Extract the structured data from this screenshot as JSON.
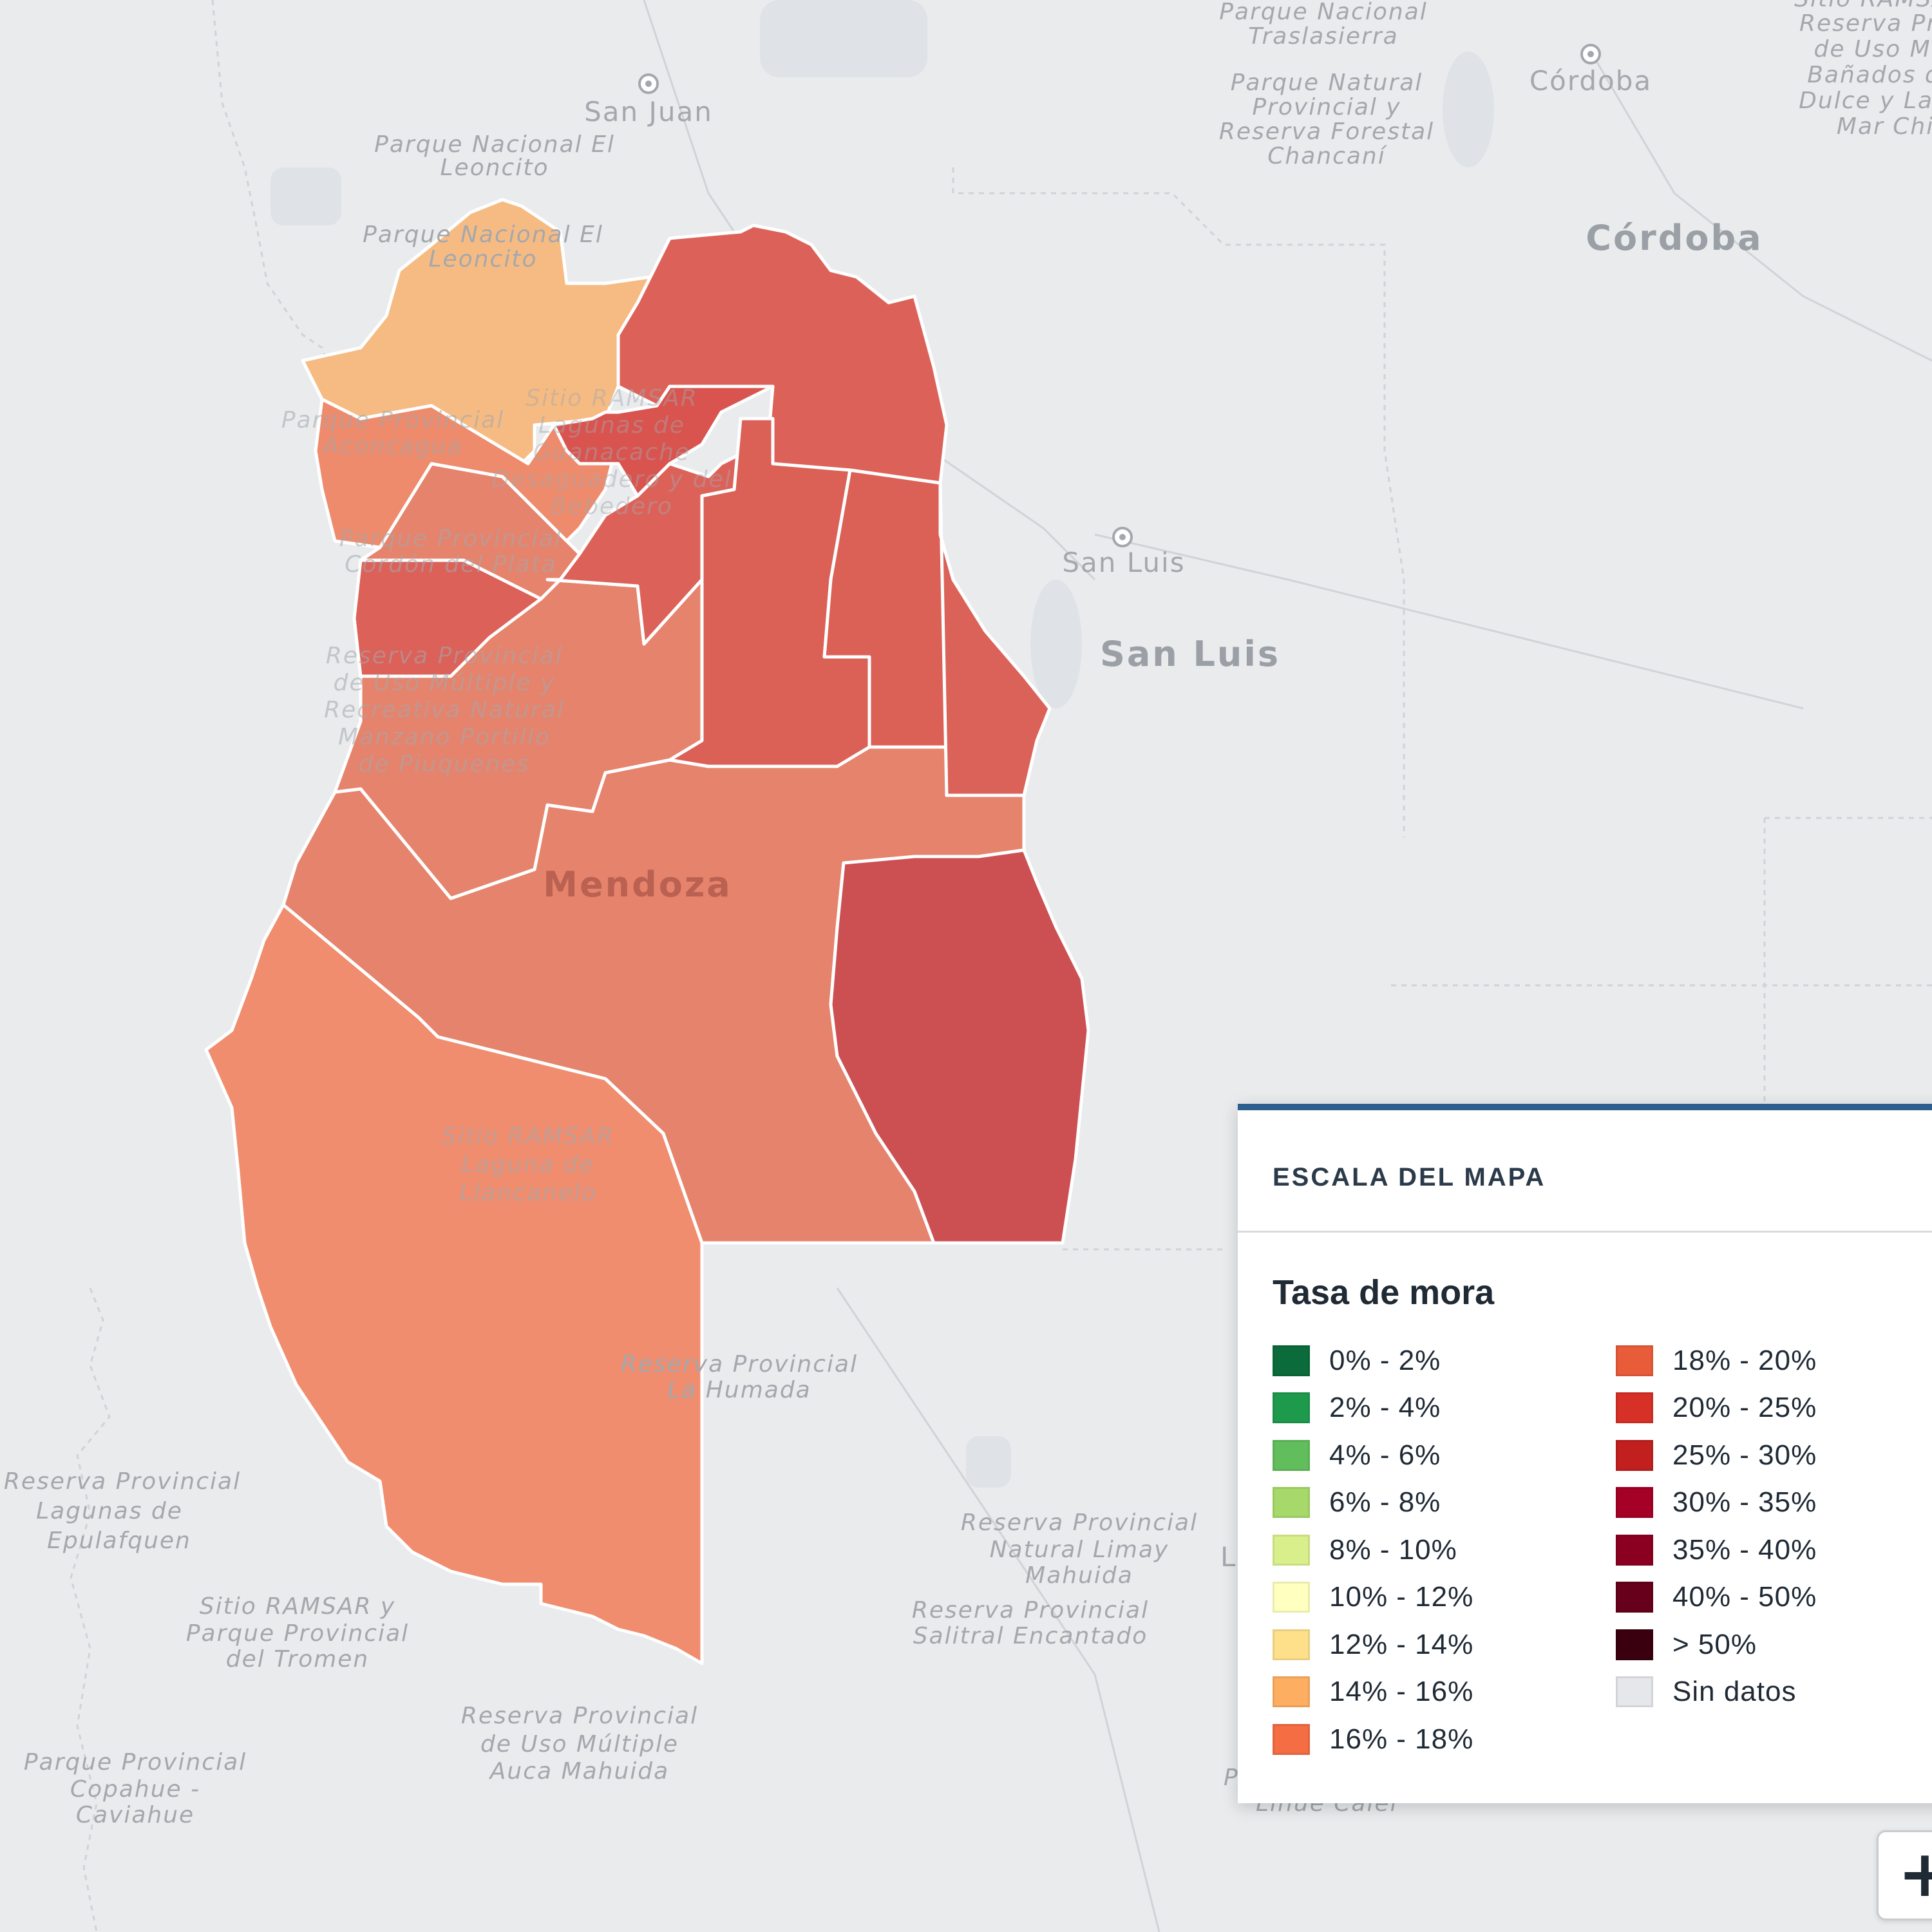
{
  "map": {
    "basemap_labels": {
      "parque_traslasierra_1": "Parque Nacional",
      "parque_traslasierra_2": "Traslasierra",
      "san_juan": "San Juan",
      "cordoba_city": "Córdoba",
      "cordoba_province": "Córdoba",
      "san_luis_city": "San Luis",
      "san_luis_province": "San Luis",
      "leoncito_1_a": "Parque Nacional El",
      "leoncito_1_b": "Leoncito",
      "leoncito_2_a": "Parque Nacional El",
      "leoncito_2_b": "Leoncito",
      "chancani_1": "Parque Natural",
      "chancani_2": "Provincial y",
      "chancani_3": "Reserva Forestal",
      "chancani_4": "Chancaní",
      "ramsar_ne_1": "Sitio RAMSAR",
      "ramsar_ne_2": "Reserva Prov.",
      "ramsar_ne_3": "de Uso Mú",
      "ramsar_ne_4": "Bañados d",
      "ramsar_ne_5": "Dulce y Lag",
      "ramsar_ne_6": "Mar Chiq",
      "mendoza": "Mendoza",
      "llancanelo_1": "Sitio RAMSAR",
      "llancanelo_2": "Laguna de",
      "llancanelo_3": "Llancanelo",
      "humada_1": "Reserva Provincial",
      "humada_2": "La Humada",
      "epulafquen_1": "Reserva Provincial",
      "epulafquen_2": "Lagunas de",
      "epulafquen_3": "Epulafquen",
      "tromen_1": "Sitio RAMSAR y",
      "tromen_2": "Parque Provincial",
      "tromen_3": "del Tromen",
      "limay_1": "Reserva Provincial",
      "limay_2": "Natural Limay",
      "limay_3": "Mahuida",
      "salitral_1": "Reserva Provincial",
      "salitral_2": "Salitral Encantado",
      "auca_1": "Reserva Provincial",
      "auca_2": "de Uso Múltiple",
      "auca_3": "Auca Mahuida",
      "copahue_1": "Parque Provincial",
      "copahue_2": "Copahue -",
      "copahue_3": "Caviahue",
      "lihue_1": "Parq",
      "lihue_2": "Lihue Calel",
      "manzano_1": "Reserva Provincial",
      "manzano_2": "de Uso Múltiple y",
      "manzano_3": "Recreativa Natural",
      "manzano_4": "Manzano Portillo",
      "manzano_5": "de Piuquenes",
      "aconcagua_1": "Parque Provincial",
      "aconcagua_2": "Aconcagua",
      "cordon_1": "Parque Provincial",
      "cordon_2": "Cordón del Plata",
      "ramsar_mid_1": "Sitio RAMSAR",
      "ramsar_mid_2": "Lagunas de",
      "ramsar_mid_3": "Guanacache",
      "ramsar_mid_4": "Desaguadero y del",
      "ramsar_mid_5": "Bebedero",
      "l_partial": "L"
    }
  },
  "legend": {
    "heading": "ESCALA DEL MAPA",
    "subtitle": "Tasa de mora",
    "left_items": [
      {
        "label": "0% - 2%",
        "color": "#0b6b3a"
      },
      {
        "label": "2% - 4%",
        "color": "#1e9a4d"
      },
      {
        "label": "4% - 6%",
        "color": "#62bd5c"
      },
      {
        "label": "6% - 8%",
        "color": "#a6d96a"
      },
      {
        "label": "8% - 10%",
        "color": "#d9ef8b"
      },
      {
        "label": "10% - 12%",
        "color": "#ffffbf"
      },
      {
        "label": "12% - 14%",
        "color": "#fee08b"
      },
      {
        "label": "14% - 16%",
        "color": "#fdae61"
      },
      {
        "label": "16% - 18%",
        "color": "#f46d43"
      }
    ],
    "right_items": [
      {
        "label": "18% - 20%",
        "color": "#e85c3a"
      },
      {
        "label": "20% - 25%",
        "color": "#d73027"
      },
      {
        "label": "25% - 30%",
        "color": "#c21f1f"
      },
      {
        "label": "30% - 35%",
        "color": "#a50026"
      },
      {
        "label": "35% - 40%",
        "color": "#8b0020"
      },
      {
        "label": "40% - 50%",
        "color": "#67001a"
      },
      {
        "label": "> 50%",
        "color": "#3a0010"
      },
      {
        "label": "Sin datos",
        "color": "#e5e7ea"
      }
    ]
  },
  "departments": [
    {
      "id": "las-heras",
      "color": "#f6bb82"
    },
    {
      "id": "lavalle",
      "color": "#dc6259"
    },
    {
      "id": "santa-rosa",
      "color": "#db6056"
    },
    {
      "id": "la-paz",
      "color": "#db6258"
    },
    {
      "id": "general-alvear",
      "color": "#cc4f52"
    },
    {
      "id": "san-rafael",
      "color": "#e6836c"
    },
    {
      "id": "malargue",
      "color": "#f08d6f"
    },
    {
      "id": "tupungato",
      "color": "#dc6159"
    },
    {
      "id": "lujan",
      "color": "#e6836c"
    },
    {
      "id": "san-carlos",
      "color": "#e6836c"
    },
    {
      "id": "tunuyan",
      "color": "#e6836c"
    },
    {
      "id": "north-west",
      "color": "#ed8b6c"
    },
    {
      "id": "rivadavia-san-martin",
      "color": "#db6056"
    },
    {
      "id": "junin",
      "color": "#dc6259"
    },
    {
      "id": "gran-mendoza",
      "color": "#d9544f"
    }
  ],
  "zoom": {
    "in_symbol": "+"
  }
}
